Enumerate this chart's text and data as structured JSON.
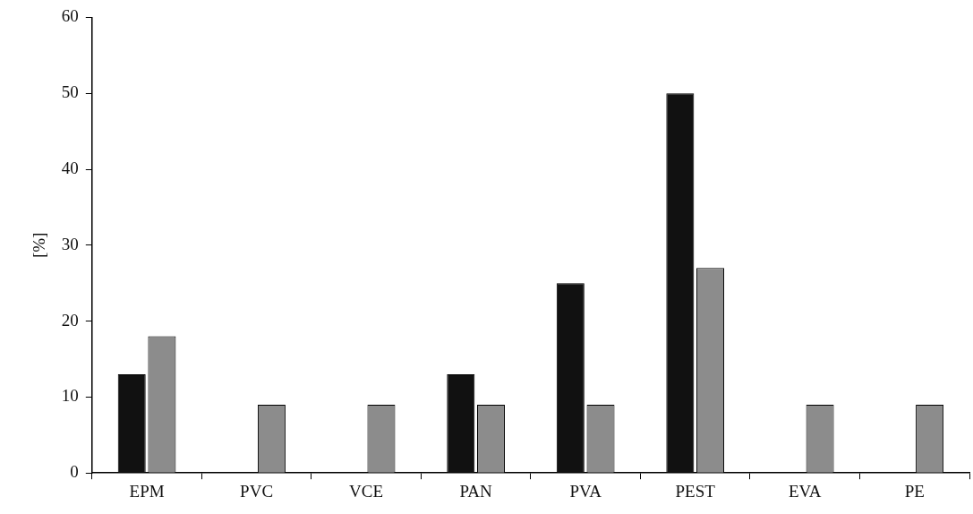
{
  "chart_data": {
    "type": "bar",
    "ylabel": "[%]",
    "categories": [
      "EPM",
      "PVC",
      "VCE",
      "PAN",
      "PVA",
      "PEST",
      "EVA",
      "PE"
    ],
    "series": [
      {
        "color": "#111111",
        "values": [
          13,
          null,
          null,
          13,
          25,
          50,
          null,
          null
        ]
      },
      {
        "color": "#8c8c8c",
        "values": [
          18,
          9,
          9,
          9,
          9,
          27,
          9,
          9
        ]
      }
    ],
    "ylim": [
      0,
      60
    ],
    "yticks": [
      0,
      10,
      20,
      30,
      40,
      50,
      60
    ],
    "legend": false
  }
}
